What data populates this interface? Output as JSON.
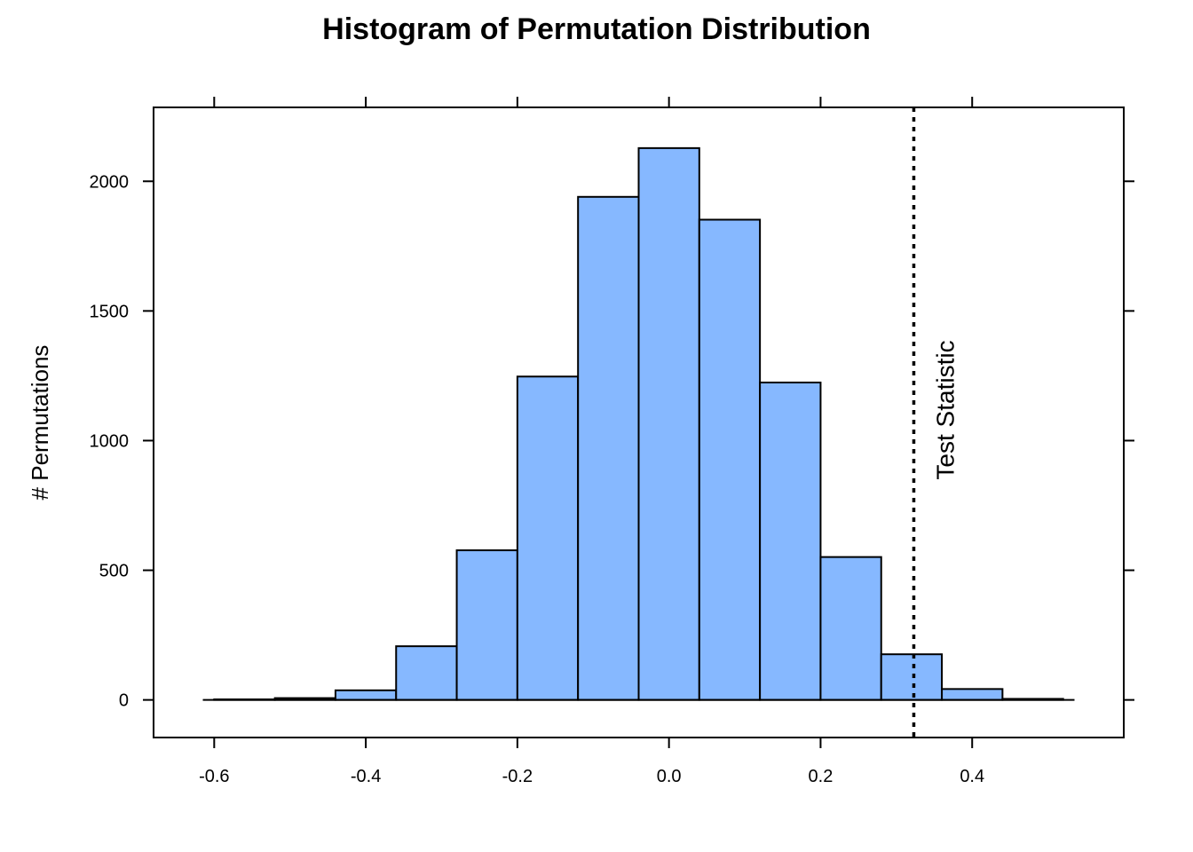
{
  "chart_data": {
    "type": "bar",
    "title": "Histogram of Permutation Distribution",
    "xlabel": "",
    "ylabel": "# Permutations",
    "xlim": [
      -0.68,
      0.6
    ],
    "ylim": [
      -145,
      2285
    ],
    "x_ticks": [
      {
        "value": -0.6,
        "label": "-0.6"
      },
      {
        "value": -0.4,
        "label": "-0.4"
      },
      {
        "value": -0.2,
        "label": "-0.2"
      },
      {
        "value": 0.0,
        "label": "0.0"
      },
      {
        "value": 0.2,
        "label": "0.2"
      },
      {
        "value": 0.4,
        "label": "0.4"
      }
    ],
    "y_ticks": [
      {
        "value": 0,
        "label": "0"
      },
      {
        "value": 500,
        "label": "500"
      },
      {
        "value": 1000,
        "label": "1000"
      },
      {
        "value": 1500,
        "label": "1500"
      },
      {
        "value": 2000,
        "label": "2000"
      }
    ],
    "bins": [
      {
        "x0": -0.6,
        "x1": -0.52,
        "count": 2
      },
      {
        "x0": -0.52,
        "x1": -0.44,
        "count": 7
      },
      {
        "x0": -0.44,
        "x1": -0.36,
        "count": 37
      },
      {
        "x0": -0.36,
        "x1": -0.28,
        "count": 207
      },
      {
        "x0": -0.28,
        "x1": -0.2,
        "count": 577
      },
      {
        "x0": -0.2,
        "x1": -0.12,
        "count": 1247
      },
      {
        "x0": -0.12,
        "x1": -0.04,
        "count": 1940
      },
      {
        "x0": -0.04,
        "x1": 0.04,
        "count": 2128
      },
      {
        "x0": 0.04,
        "x1": 0.12,
        "count": 1852
      },
      {
        "x0": 0.12,
        "x1": 0.2,
        "count": 1224
      },
      {
        "x0": 0.2,
        "x1": 0.28,
        "count": 551
      },
      {
        "x0": 0.28,
        "x1": 0.36,
        "count": 176
      },
      {
        "x0": 0.36,
        "x1": 0.44,
        "count": 42
      },
      {
        "x0": 0.44,
        "x1": 0.52,
        "count": 4
      }
    ],
    "baseline": {
      "x0": -0.615,
      "x1": 0.535
    },
    "test_statistic": {
      "value": 0.323,
      "label": "Test Statistic"
    },
    "bar_color": "#86B8FF",
    "grid": false,
    "legend": "none"
  }
}
